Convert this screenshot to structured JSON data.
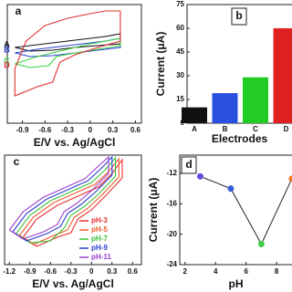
{
  "chart_data": [
    {
      "type": "line",
      "panel_label": "a",
      "xlabel": "E/V vs. Ag/AgCl",
      "xlim": [
        -1.1,
        0.68
      ],
      "xticks": [
        -0.9,
        -0.6,
        -0.3,
        0.0,
        0.3,
        0.6
      ],
      "ylim": [
        -65,
        65
      ],
      "series": [
        {
          "name": "A",
          "color": "#111111",
          "x": [
            -1.0,
            -0.7,
            -0.4,
            -0.1,
            0.2,
            0.4,
            0.4,
            0.1,
            -0.2,
            -0.5,
            -0.8,
            -1.0
          ],
          "values": [
            18,
            21,
            24,
            27,
            30,
            33,
            22,
            20,
            18,
            15,
            14,
            18
          ]
        },
        {
          "name": "B",
          "color": "#2a3fd0",
          "x": [
            -1.0,
            -0.7,
            -0.4,
            -0.1,
            0.2,
            0.4,
            0.4,
            0.1,
            -0.2,
            -0.5,
            -0.8,
            -1.0
          ],
          "values": [
            12,
            16,
            19,
            22,
            25,
            28,
            18,
            15,
            12,
            9,
            8,
            12
          ]
        },
        {
          "name": "C",
          "color": "#3cd23c",
          "x": [
            -1.0,
            -0.7,
            -0.4,
            -0.1,
            0.2,
            0.4,
            0.4,
            0.1,
            -0.2,
            -0.45,
            -0.55,
            -0.8,
            -1.0
          ],
          "values": [
            0,
            8,
            14,
            20,
            25,
            28,
            20,
            16,
            12,
            8,
            -2,
            -4,
            0
          ]
        },
        {
          "name": "D",
          "color": "#e03030",
          "x": [
            -1.0,
            -0.85,
            -0.6,
            -0.3,
            0.0,
            0.2,
            0.4,
            0.4,
            0.1,
            -0.2,
            -0.4,
            -0.5,
            -0.7,
            -1.0,
            -1.0
          ],
          "values": [
            -5,
            25,
            42,
            50,
            55,
            58,
            58,
            25,
            18,
            10,
            2,
            -20,
            -25,
            -35,
            -5
          ]
        }
      ]
    },
    {
      "type": "bar",
      "panel_label": "b",
      "ylabel": "Current (μA)",
      "xlabel": "Electrodes",
      "categories": [
        "A",
        "B",
        "C",
        "D"
      ],
      "values": [
        10,
        19,
        29,
        60
      ],
      "colors": [
        "#111111",
        "#2a50e0",
        "#22cc22",
        "#e02020"
      ],
      "ylim": [
        0,
        75
      ],
      "yticks": [
        0,
        15,
        30,
        45,
        60,
        75
      ]
    },
    {
      "type": "line",
      "panel_label": "c",
      "xlabel": "E/V vs. Ag/AgCl",
      "xlim": [
        -1.27,
        0.73
      ],
      "xticks": [
        -1.2,
        -0.9,
        -0.6,
        -0.3,
        0.0,
        0.3,
        0.6
      ],
      "ylim": [
        -60,
        60
      ],
      "legend": "lower right",
      "series": [
        {
          "name": "pH-3",
          "color": "#e8312f",
          "x": [
            -1.0,
            -0.8,
            -0.5,
            -0.2,
            0.1,
            0.3,
            0.45,
            0.45,
            0.2,
            0.0,
            -0.2,
            -0.3,
            -0.5,
            -0.8,
            -1.0
          ],
          "values": [
            -30,
            -10,
            5,
            15,
            25,
            40,
            55,
            35,
            15,
            0,
            -10,
            -25,
            -30,
            -40,
            -30
          ]
        },
        {
          "name": "pH-5",
          "color": "#f05a28",
          "x": [
            -1.05,
            -0.85,
            -0.55,
            -0.25,
            0.05,
            0.25,
            0.4,
            0.4,
            0.15,
            -0.05,
            -0.25,
            -0.35,
            -0.55,
            -0.85,
            -1.05
          ],
          "values": [
            -28,
            -8,
            8,
            18,
            28,
            42,
            56,
            36,
            16,
            2,
            -8,
            -22,
            -28,
            -38,
            -28
          ]
        },
        {
          "name": "pH-7",
          "color": "#3cc23c",
          "x": [
            -1.1,
            -0.9,
            -0.6,
            -0.3,
            0.0,
            0.2,
            0.35,
            0.35,
            0.1,
            -0.1,
            -0.3,
            -0.4,
            -0.6,
            -0.9,
            -1.1
          ],
          "values": [
            -26,
            -6,
            10,
            20,
            30,
            44,
            57,
            37,
            17,
            4,
            -6,
            -20,
            -34,
            -36,
            -26
          ]
        },
        {
          "name": "pH-9",
          "color": "#2a3fd0",
          "x": [
            -1.15,
            -0.95,
            -0.65,
            -0.35,
            -0.05,
            0.15,
            0.3,
            0.3,
            0.05,
            -0.15,
            -0.35,
            -0.45,
            -0.65,
            -0.95,
            -1.15
          ],
          "values": [
            -24,
            -4,
            12,
            22,
            32,
            46,
            58,
            38,
            19,
            6,
            -4,
            -18,
            -26,
            -34,
            -24
          ]
        },
        {
          "name": "pH-11",
          "color": "#9b3fd0",
          "x": [
            -1.2,
            -1.0,
            -0.7,
            -0.4,
            -0.1,
            0.1,
            0.25,
            0.25,
            0.0,
            -0.2,
            -0.4,
            -0.5,
            -0.7,
            -1.0,
            -1.2
          ],
          "values": [
            -22,
            -2,
            14,
            24,
            34,
            48,
            58,
            40,
            21,
            8,
            -2,
            -16,
            -24,
            -32,
            -22
          ]
        }
      ]
    },
    {
      "type": "line",
      "panel_label": "d",
      "ylabel": "Current (μA)",
      "xlabel": "pH",
      "x": [
        3,
        5,
        7,
        9
      ],
      "values": [
        -12.4,
        -14,
        -21.3,
        -12.7
      ],
      "color": "#222222",
      "point_colors": [
        "#5a4fe0",
        "#3a5fd8",
        "#44cc44",
        "#f07a20"
      ],
      "xlim": [
        1.66,
        10.2
      ],
      "xticks": [
        2,
        4,
        6,
        8,
        10
      ],
      "ylim": [
        -24,
        -9.6
      ],
      "yticks": [
        -12,
        -16,
        -20,
        -24
      ]
    }
  ]
}
